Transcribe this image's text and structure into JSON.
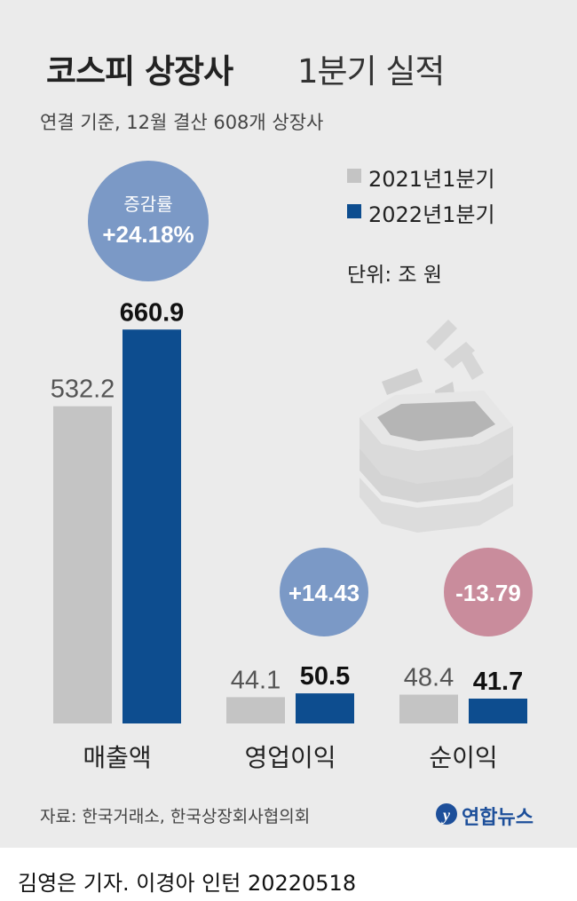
{
  "title_bold": "코스피 상장사",
  "title_light": "1분기 실적",
  "subtitle": "연결 기준, 12월 결산 608개 상장사",
  "unit": "단위: 조 원",
  "source": "자료: 한국거래소, 한국상장회사협의회",
  "logo": "연합뉴스",
  "credit": "김영은 기자. 이경아 인턴  20220518",
  "colors": {
    "prev": "#c4c4c4",
    "curr": "#0d4d8f",
    "bubble_up": "#7b99c6",
    "bubble_down": "#c98c9c",
    "panel": "#ebebeb"
  },
  "chart_data": {
    "type": "bar",
    "categories": [
      "매출액",
      "영업이익",
      "순이익"
    ],
    "series": [
      {
        "name": "2021년1분기",
        "values": [
          532.2,
          44.1,
          48.4
        ],
        "labels": [
          "532.2",
          "44.1",
          "48.4"
        ]
      },
      {
        "name": "2022년1분기",
        "values": [
          660.9,
          50.5,
          41.7
        ],
        "labels": [
          "660.9",
          "50.5",
          "41.7"
        ]
      }
    ],
    "change": [
      {
        "heading": "증감률",
        "value": "+24.18%"
      },
      {
        "heading": "",
        "value": "+14.43"
      },
      {
        "heading": "",
        "value": "-13.79"
      }
    ],
    "ylim": [
      0,
      700
    ],
    "legend": "top-right"
  }
}
